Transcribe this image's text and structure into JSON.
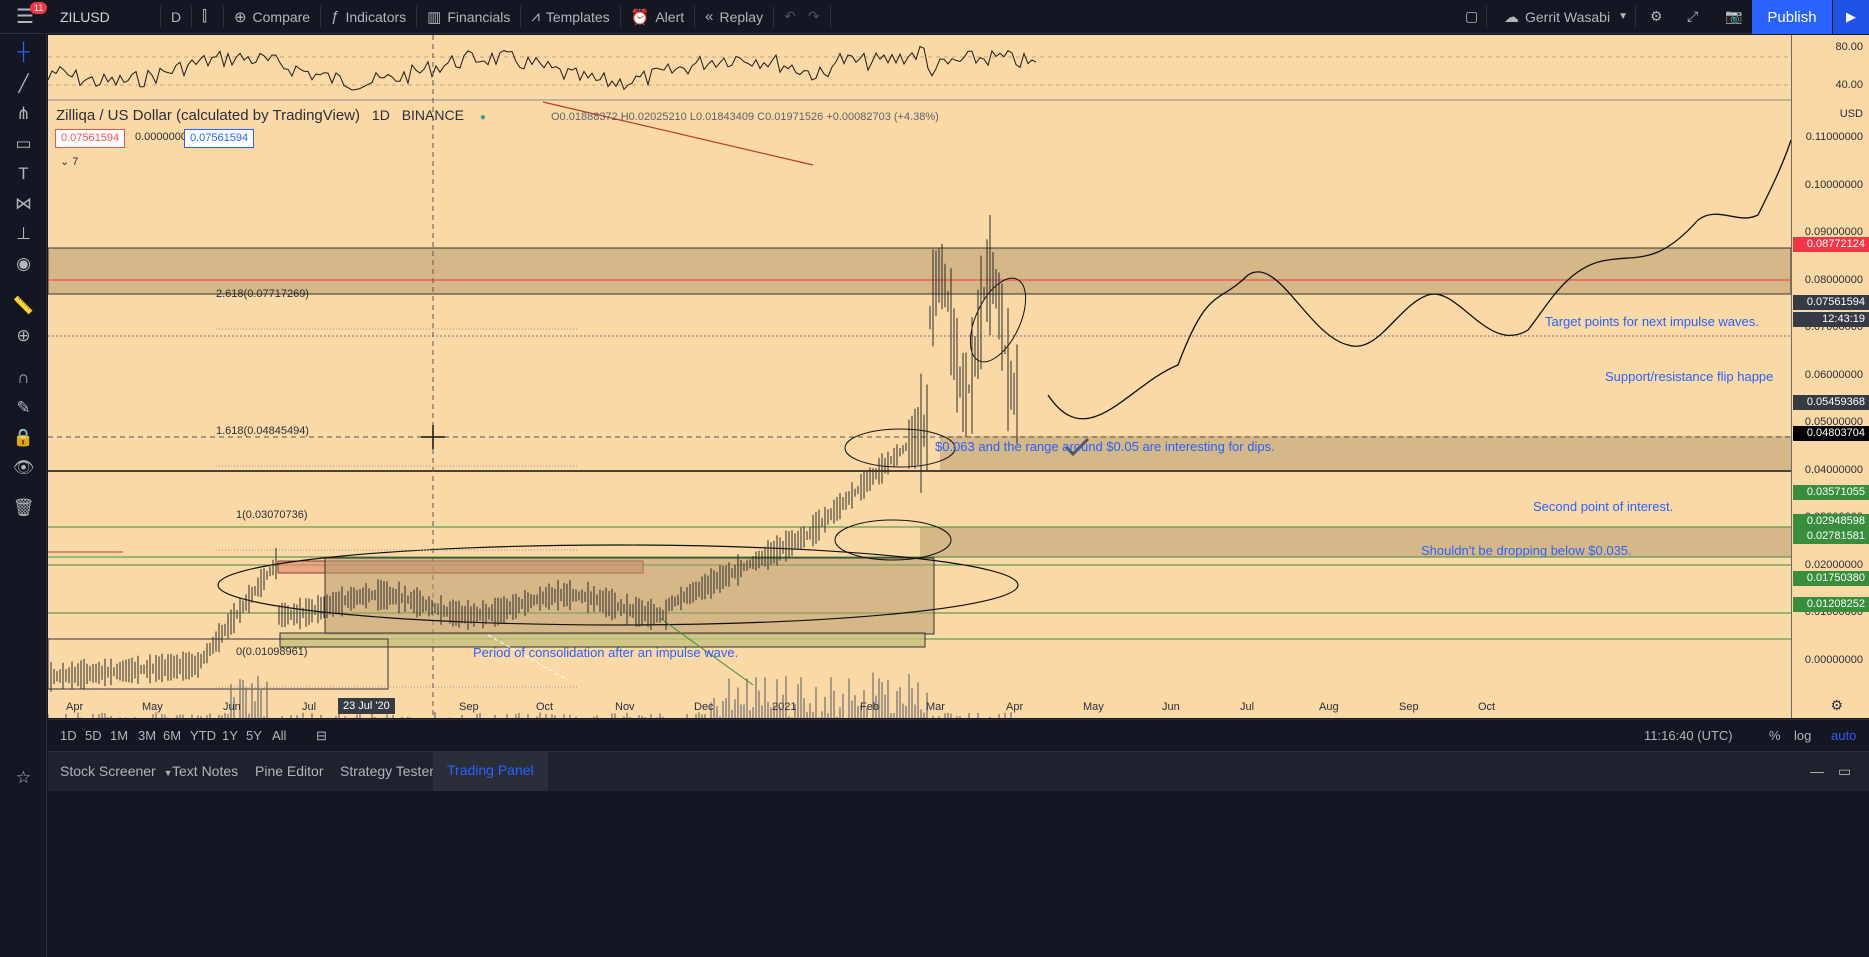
{
  "topbar": {
    "menu_badge": "11",
    "symbol": "ZILUSD",
    "interval": "D",
    "compare": "Compare",
    "indicators": "Indicators",
    "financials": "Financials",
    "templates": "Templates",
    "alert": "Alert",
    "replay": "Replay",
    "user": "Gerrit Wasabi",
    "publish": "Publish"
  },
  "legend": {
    "title": "Zilliqa / US Dollar (calculated by TradingView)",
    "interval": "1D",
    "exchange": "BINANCE",
    "open": "O0.01888372",
    "high": "H0.02025210",
    "low": "L0.01843409",
    "close": "C0.01971526",
    "change": "+0.00082703 (+4.38%)",
    "bid": "0.07561594",
    "spread": "0.00000000",
    "ask": "0.07561594",
    "collapsed_count": "7"
  },
  "annotations": {
    "target": "Target points for next impulse waves.",
    "flip": "Support/resistance flip happe",
    "dips": "$0.063 and the range around $0.05 are interesting for dips.",
    "second": "Second point of interest.",
    "shouldnt": "Shouldn't be dropping below $0.035.",
    "consolidation": "Period of consolidation after an impulse wave."
  },
  "fib_labels": {
    "f2618": "2.618(0.07717269)",
    "f1618": "1.618(0.04845494)",
    "f1": "1(0.03070736)",
    "f0": "0(0.01098961)"
  },
  "indicator_scale": [
    "80.00",
    "40.00"
  ],
  "price_scale": {
    "currency": "USD",
    "labels": [
      "0.11000000",
      "0.10000000",
      "0.09000000",
      "0.08000000",
      "0.07000000",
      "0.06000000",
      "0.05000000",
      "0.04000000",
      "0.03000000",
      "0.02000000",
      "0.01000000",
      "0.00000000"
    ],
    "tags": {
      "red": "0.08772124",
      "current": "0.07561594",
      "countdown": "12:43:19",
      "cross": "0.05459368",
      "black": "0.04803704",
      "g1": "0.03571055",
      "g2": "0.02948598",
      "g3": "0.02781581",
      "g4": "0.01750380",
      "g5": "0.01208252"
    }
  },
  "time_axis": {
    "labels": [
      "Apr",
      "May",
      "Jun",
      "Jul",
      "Sep",
      "Oct",
      "Nov",
      "Dec",
      "2021",
      "Feb",
      "Mar",
      "Apr",
      "May",
      "Jun",
      "Jul",
      "Aug",
      "Sep",
      "Oct"
    ],
    "crosshair": "23 Jul '20"
  },
  "range_bar": {
    "ranges": [
      "1D",
      "5D",
      "1M",
      "3M",
      "6M",
      "YTD",
      "1Y",
      "5Y",
      "All"
    ],
    "clock": "11:16:40 (UTC)",
    "percent": "%",
    "log": "log",
    "auto": "auto"
  },
  "bottom_panel": {
    "tabs": [
      "Stock Screener",
      "Text Notes",
      "Pine Editor",
      "Strategy Tester",
      "Trading Panel"
    ]
  },
  "colors": {
    "chart_bg": "#fad9a7",
    "accent": "#2962ff",
    "red": "#f23645",
    "green": "#388e3c"
  }
}
